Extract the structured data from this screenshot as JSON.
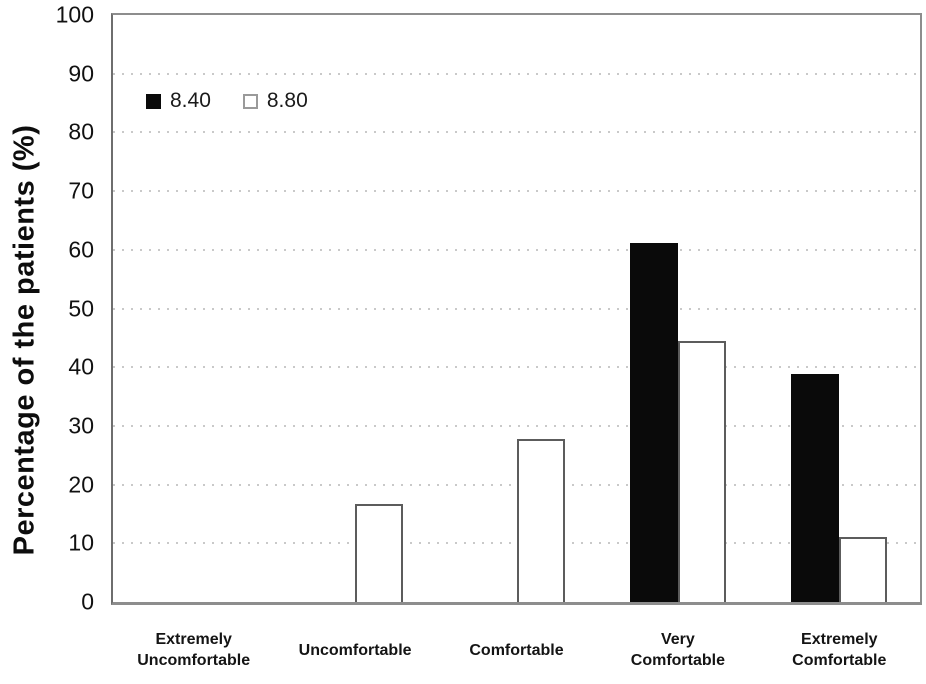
{
  "chart_data": {
    "type": "bar",
    "title": "",
    "xlabel": "",
    "ylabel": "Percentage of the patients (%)",
    "ylim": [
      0,
      100
    ],
    "ytick_step": 10,
    "yticks": [
      0,
      10,
      20,
      30,
      40,
      50,
      60,
      70,
      80,
      90,
      100
    ],
    "grid": "horizontal dotted gridlines at every 10%",
    "legend_position": "top-left inside plot area",
    "categories": [
      "Extremely Uncomfortable",
      "Uncomfortable",
      "Comfortable",
      "Very Comfortable",
      "Extremely Comfortable"
    ],
    "category_label_lines": [
      [
        "Extremely",
        "Uncomfortable"
      ],
      [
        "Uncomfortable"
      ],
      [
        "Comfortable"
      ],
      [
        "Very",
        "Comfortable"
      ],
      [
        "Extremely",
        "Comfortable"
      ]
    ],
    "series": [
      {
        "name": "8.40",
        "fill": "#0a0a0a",
        "outline": "#0a0a0a",
        "values": [
          0,
          0,
          0,
          61.1,
          38.9
        ]
      },
      {
        "name": "8.80",
        "fill": "#ffffff",
        "outline": "#5c5c5c",
        "values": [
          0,
          16.7,
          27.8,
          44.4,
          11.1
        ]
      }
    ],
    "colors": {
      "axis": "#8d8d8d",
      "gridline": "#c9c9c9",
      "bar_black": "#0a0a0a",
      "bar_white_outline": "#5c5c5c",
      "text": "#111111"
    }
  }
}
